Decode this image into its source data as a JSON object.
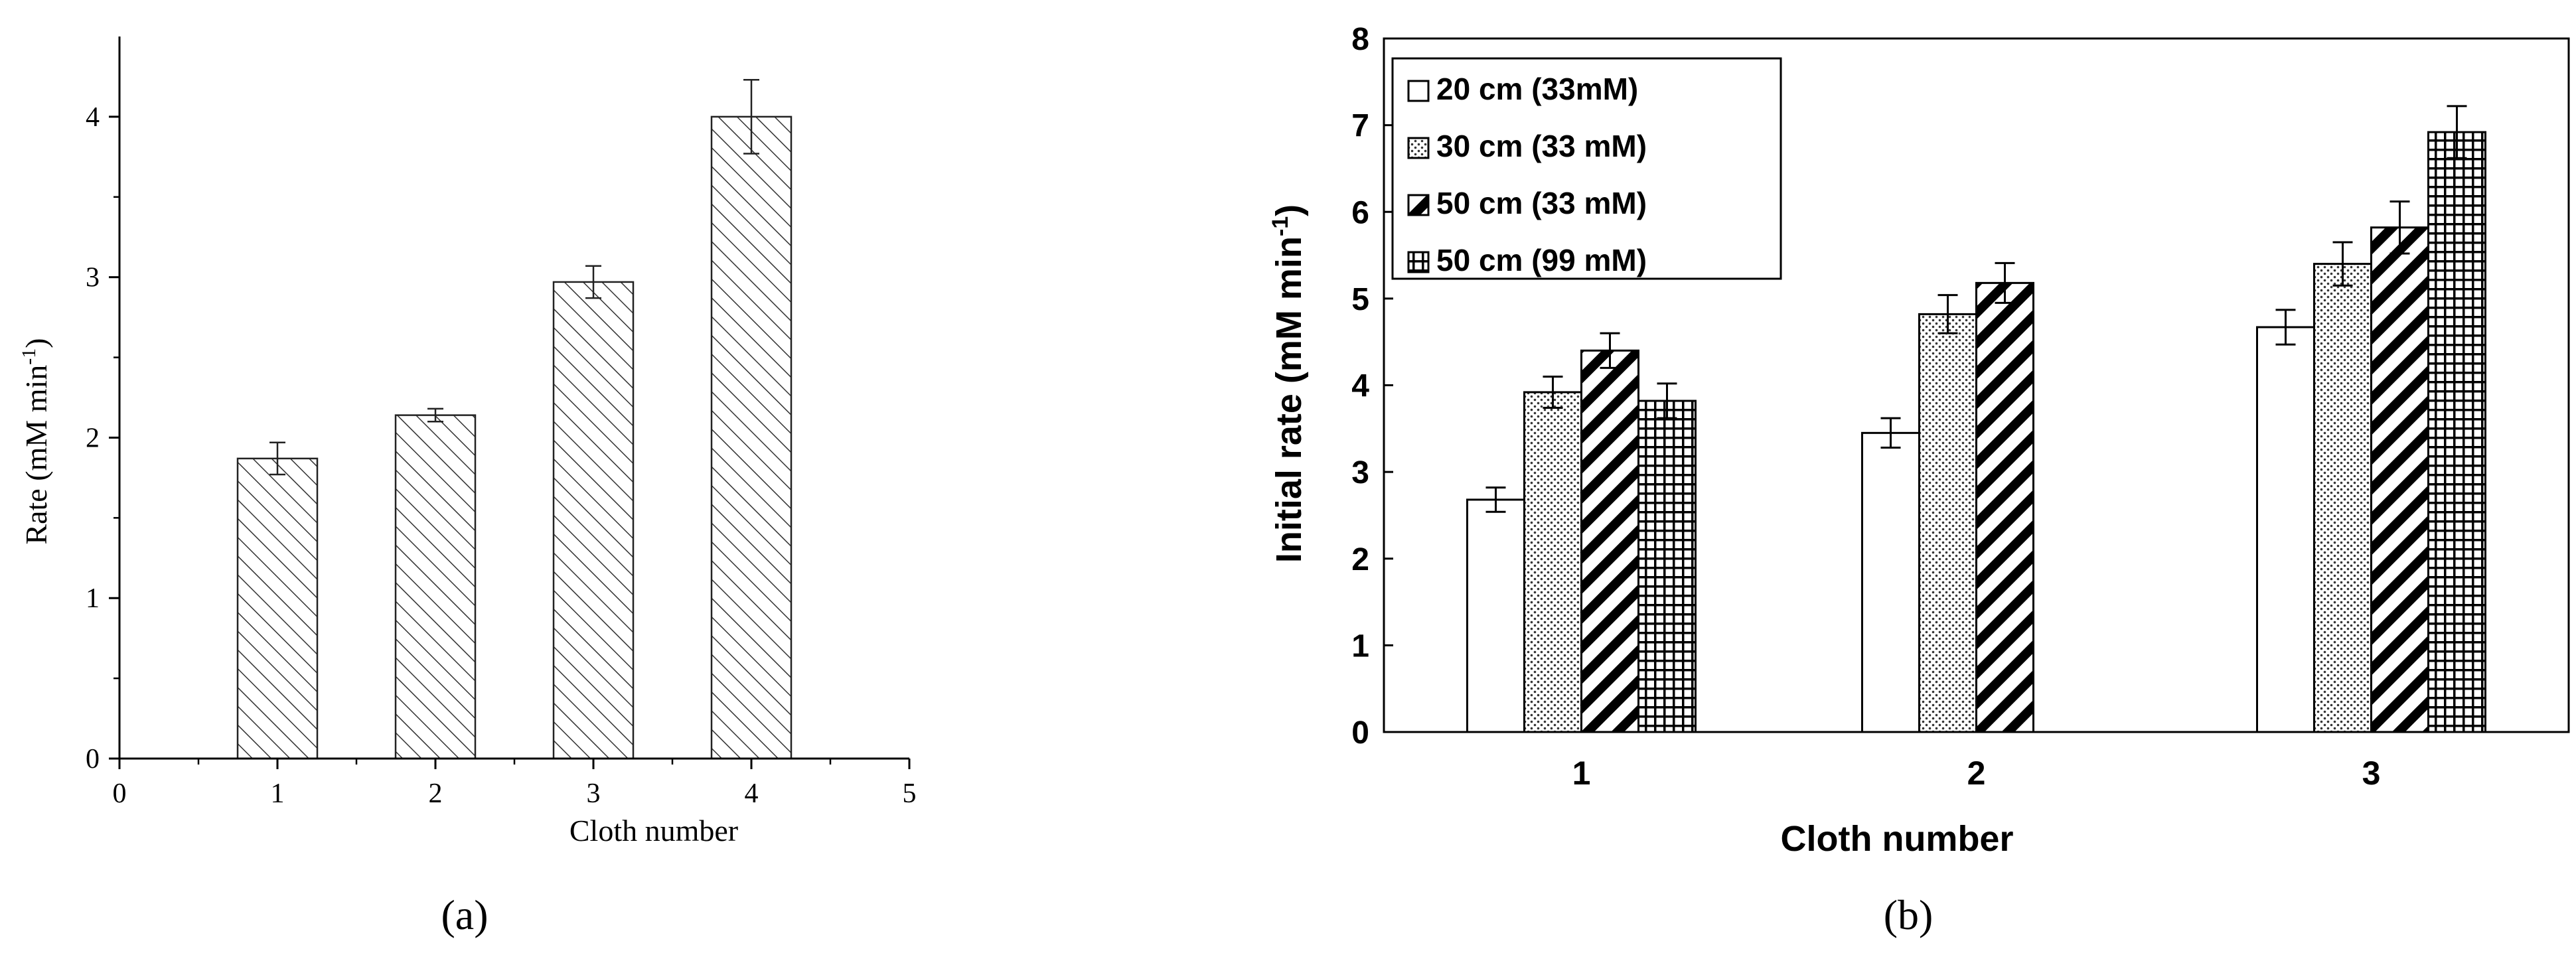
{
  "charts": [
    {
      "panel_label": "(a)",
      "type": "bar",
      "xlabel": "Cloth number",
      "ylabel_main": "Rate (mM min",
      "ylabel_sup": "-1",
      "ylabel_close": ")",
      "xlim": [
        0,
        5
      ],
      "ylim": [
        0,
        4.5
      ],
      "xticks": [
        0,
        1,
        2,
        3,
        4,
        5
      ],
      "yticks": [
        0,
        1,
        2,
        3,
        4
      ],
      "grid": false,
      "pattern": "diagonal-hatch",
      "x": [
        1,
        2,
        3,
        4
      ],
      "values": [
        1.87,
        2.14,
        2.97,
        4.0
      ],
      "errors": [
        0.1,
        0.04,
        0.1,
        0.23
      ]
    },
    {
      "panel_label": "(b)",
      "type": "bar",
      "xlabel": "Cloth number",
      "ylabel_main": "Initial rate (mM min",
      "ylabel_sup": "-1",
      "ylabel_close": ")",
      "categories": [
        "1",
        "2",
        "3"
      ],
      "ylim": [
        0,
        8
      ],
      "yticks": [
        0,
        1,
        2,
        3,
        4,
        5,
        6,
        7,
        8
      ],
      "grid": false,
      "legend_position": "top-left",
      "series": [
        {
          "name": "20 cm (33mM)",
          "pattern": "white",
          "values": [
            2.68,
            3.45,
            4.67
          ],
          "errors": [
            0.14,
            0.17,
            0.2
          ]
        },
        {
          "name": "30 cm (33 mM)",
          "pattern": "dots",
          "values": [
            3.92,
            4.82,
            5.4
          ],
          "errors": [
            0.18,
            0.22,
            0.25
          ]
        },
        {
          "name": "50 cm (33 mM)",
          "pattern": "diagonal",
          "values": [
            4.4,
            5.18,
            5.82
          ],
          "errors": [
            0.2,
            0.23,
            0.3
          ]
        },
        {
          "name": "50 cm (99 mM)",
          "pattern": "grid",
          "values": [
            3.82,
            null,
            6.92
          ],
          "errors": [
            0.2,
            null,
            0.3
          ]
        }
      ]
    }
  ]
}
